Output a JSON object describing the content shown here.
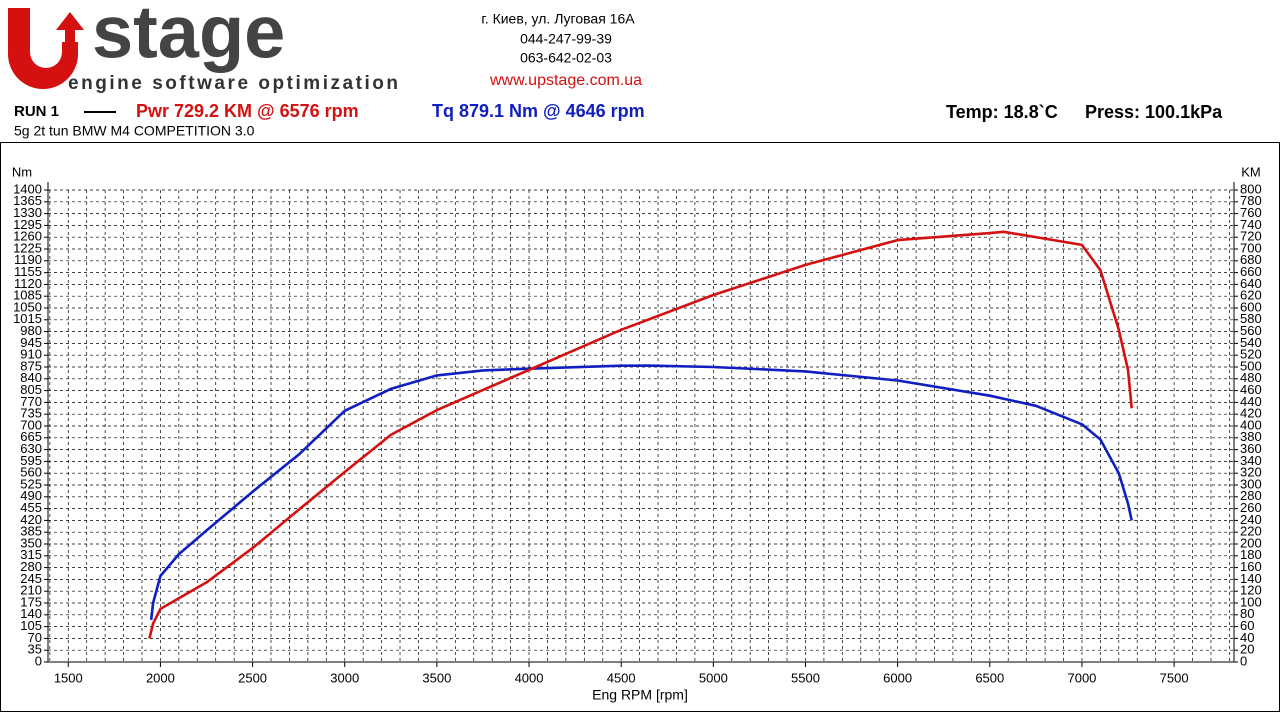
{
  "header": {
    "logo_text": "stage",
    "logo_tagline": "engine software optimization",
    "address": "г. Киев, ул. Луговая 16А",
    "phone1": "044-247-99-39",
    "phone2": "063-642-02-03",
    "website": "www.upstage.com.ua",
    "run": "RUN 1",
    "power_peak": "Pwr  729.2 KM @ 6576 rpm",
    "torque_peak": "Tq 879.1 Nm @ 4646 rpm",
    "temp": "Temp: 18.8`C",
    "press": "Press: 100.1kPa",
    "subtitle": "5g 2t tun BMW M4 COMPETITION 3.0"
  },
  "chart_data": {
    "type": "line",
    "x_label": "Eng RPM [rpm]",
    "y_label": "Nm",
    "y2_label": "KM",
    "xlim": [
      1390,
      7825
    ],
    "ylim": [
      0,
      1400
    ],
    "y2lim": [
      0,
      800
    ],
    "grid": true,
    "x_grid_step": 100,
    "xticks": [
      1500,
      2000,
      2500,
      3000,
      3500,
      4000,
      4500,
      5000,
      5500,
      6000,
      6500,
      7000,
      7500
    ],
    "yticks": [
      0,
      35,
      70,
      105,
      140,
      175,
      210,
      245,
      280,
      315,
      350,
      385,
      420,
      455,
      490,
      525,
      560,
      595,
      630,
      665,
      700,
      735,
      770,
      805,
      840,
      875,
      910,
      945,
      980,
      1015,
      1050,
      1085,
      1120,
      1155,
      1190,
      1225,
      1260,
      1295,
      1330,
      1365,
      1400
    ],
    "y2ticks": [
      0,
      20,
      40,
      60,
      80,
      100,
      120,
      140,
      160,
      180,
      200,
      220,
      240,
      260,
      280,
      300,
      320,
      340,
      360,
      380,
      400,
      420,
      440,
      460,
      480,
      500,
      520,
      540,
      560,
      580,
      600,
      620,
      640,
      660,
      680,
      700,
      720,
      740,
      760,
      780,
      800
    ],
    "series": [
      {
        "name": "Tq",
        "color": "#1020c0",
        "x": [
          1950,
          1960,
          2000,
          2100,
          2250,
          2500,
          2750,
          3000,
          3250,
          3500,
          3750,
          4000,
          4500,
          4646,
          5000,
          5500,
          6000,
          6500,
          6750,
          7000,
          7100,
          7200,
          7250,
          7270
        ],
        "values": [
          125,
          175,
          255,
          320,
          390,
          505,
          615,
          745,
          810,
          850,
          865,
          870,
          879,
          879.1,
          875,
          862,
          835,
          790,
          760,
          705,
          660,
          560,
          470,
          420
        ]
      },
      {
        "name": "Pwr",
        "color": "#d41010",
        "axis": "y2",
        "x": [
          1940,
          1960,
          2000,
          2250,
          2500,
          2750,
          3000,
          3250,
          3500,
          4000,
          4500,
          5000,
          5500,
          6000,
          6500,
          6576,
          7000,
          7100,
          7200,
          7250,
          7270
        ],
        "values": [
          40,
          65,
          90,
          135,
          193,
          258,
          322,
          385,
          427,
          495,
          563,
          622,
          673,
          715,
          727,
          729.2,
          707,
          664,
          563,
          495,
          430
        ]
      }
    ]
  }
}
